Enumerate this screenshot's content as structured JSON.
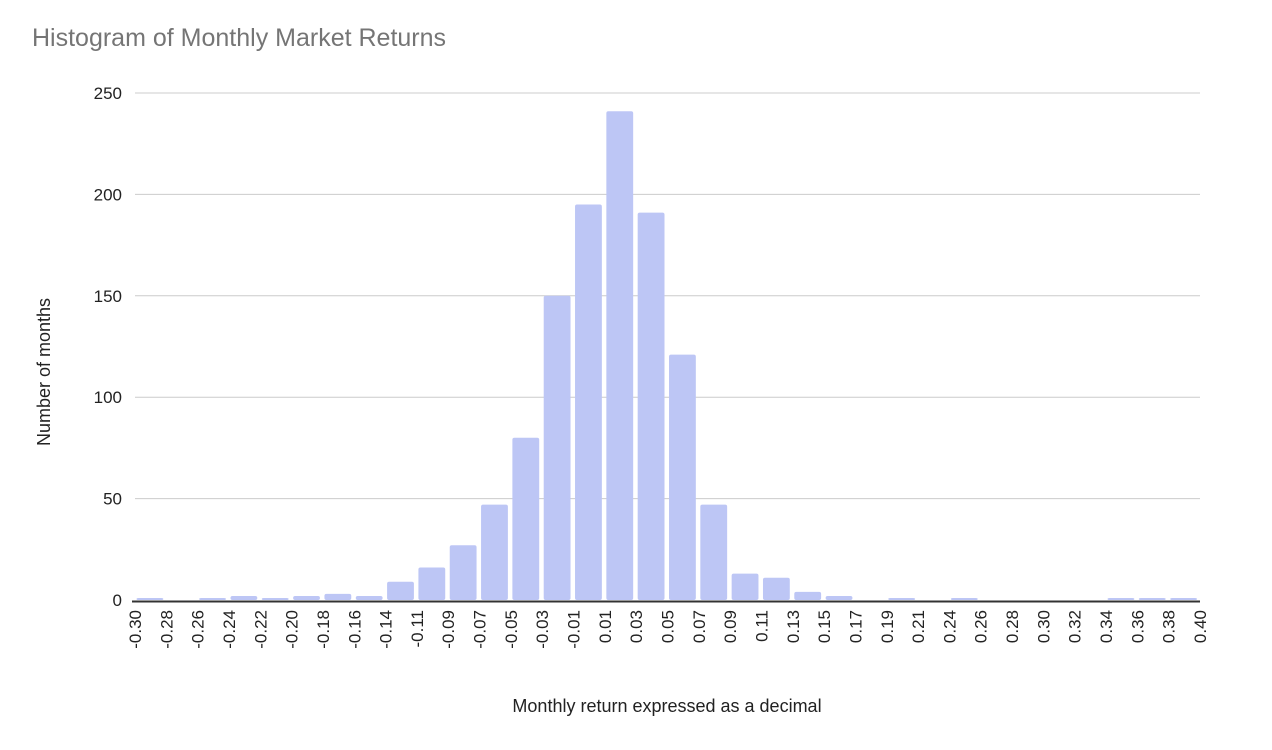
{
  "chart_data": {
    "type": "bar",
    "title": "Histogram of Monthly Market Returns",
    "xlabel": "Monthly return expressed as a decimal",
    "ylabel": "Number of months",
    "ylim": [
      0,
      250
    ],
    "yticks": [
      0,
      50,
      100,
      150,
      200,
      250
    ],
    "grid": true,
    "bin_edges": [
      "-0.30",
      "-0.28",
      "-0.26",
      "-0.24",
      "-0.22",
      "-0.20",
      "-0.18",
      "-0.16",
      "-0.14",
      "-0.11",
      "-0.09",
      "-0.07",
      "-0.05",
      "-0.03",
      "-0.01",
      "0.01",
      "0.03",
      "0.05",
      "0.07",
      "0.09",
      "0.11",
      "0.13",
      "0.15",
      "0.17",
      "0.19",
      "0.21",
      "0.24",
      "0.26",
      "0.28",
      "0.30",
      "0.32",
      "0.34",
      "0.36",
      "0.38",
      "0.40"
    ],
    "values": [
      1,
      0,
      1,
      2,
      1,
      2,
      3,
      2,
      9,
      16,
      27,
      47,
      80,
      150,
      195,
      241,
      191,
      121,
      47,
      13,
      11,
      4,
      2,
      0,
      1,
      0,
      1,
      0,
      0,
      0,
      0,
      1,
      1,
      1
    ],
    "colors": {
      "bar": "#bdc6f5",
      "title": "#757575",
      "grid": "#cccccc",
      "axis": "#333333"
    }
  }
}
